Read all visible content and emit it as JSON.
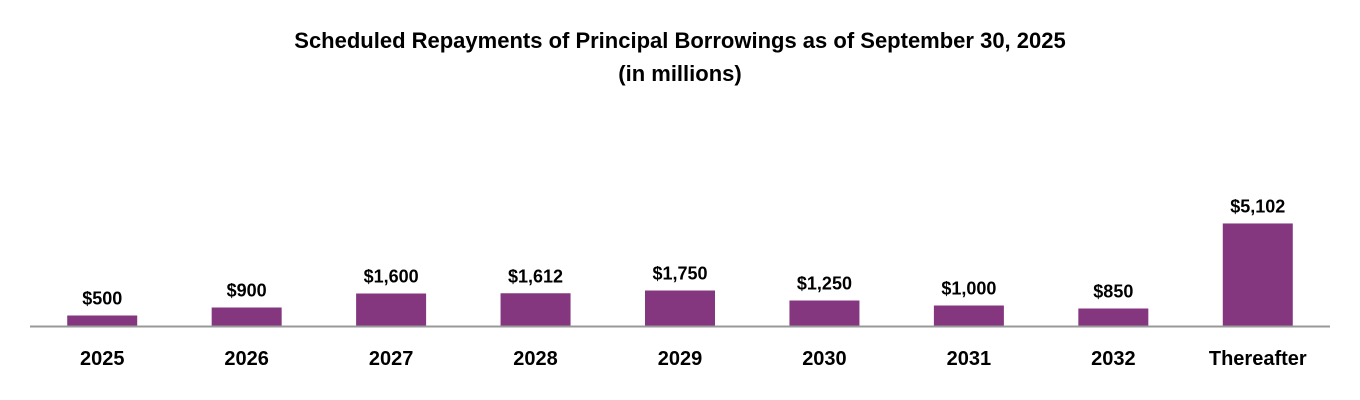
{
  "chart_data": {
    "type": "bar",
    "title": "Scheduled Repayments of Principal Borrowings as of September 30, 2025",
    "subtitle": "(in millions)",
    "categories": [
      "2025",
      "2026",
      "2027",
      "2028",
      "2029",
      "2030",
      "2031",
      "2032",
      "Thereafter"
    ],
    "values": [
      500,
      900,
      1600,
      1612,
      1750,
      1250,
      1000,
      850,
      5102
    ],
    "value_labels": [
      "$500",
      "$900",
      "$1,600",
      "$1,612",
      "$1,750",
      "$1,250",
      "$1,000",
      "$850",
      "$5,102"
    ],
    "xlabel": "",
    "ylabel": "",
    "y_axis_visible": false,
    "grid": false,
    "legend": "none",
    "bar_color": "#84367F",
    "axis_color": "#999999"
  }
}
